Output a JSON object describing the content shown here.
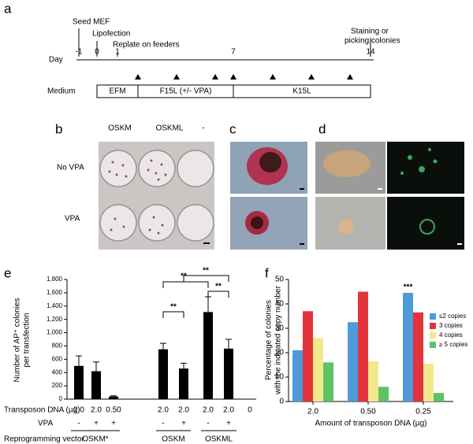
{
  "panel_labels": [
    "a",
    "b",
    "c",
    "d",
    "e",
    "f"
  ],
  "timeline": {
    "day_label": "Day",
    "days": [
      "-1",
      "0",
      "1",
      "7",
      "14"
    ],
    "events": [
      "Seed MEF",
      "Lipofection",
      "Replate on feeders",
      "Staining or",
      "picking colonies"
    ],
    "medium_label": "Medium",
    "media": [
      "EFM",
      "F15L (+/- VPA)",
      "K15L"
    ]
  },
  "plates": {
    "columns": [
      "OSKM",
      "OSKML",
      "-"
    ],
    "rows": [
      "No VPA",
      "VPA"
    ]
  },
  "chart_data": [
    {
      "type": "bar",
      "ylabel": [
        "Number of AP⁺ colonies",
        "per transfection"
      ],
      "values": [
        500,
        420,
        40,
        750,
        460,
        1310,
        760,
        0
      ],
      "errors": [
        150,
        140,
        10,
        90,
        80,
        230,
        140,
        0
      ],
      "color": "#000000",
      "ylim": [
        0,
        1800
      ],
      "yticks": [
        0,
        200,
        400,
        600,
        800,
        {
          "value": 1000,
          "label": "1,000"
        },
        {
          "value": 1200,
          "label": "1,200"
        },
        {
          "value": 1400,
          "label": "1,400"
        },
        {
          "value": 1600,
          "label": "1,600"
        },
        {
          "value": 1800,
          "label": "1,800"
        }
      ],
      "annotations": [
        "**",
        "**",
        "**",
        "**"
      ],
      "table": {
        "rows": [
          {
            "label": "Transposon DNA (µg)",
            "cells": [
              "2.0",
              "2.0",
              "0.50",
              "2.0",
              "2.0",
              "2.0",
              "2.0",
              "0"
            ]
          },
          {
            "label": "VPA",
            "cells": [
              "-",
              "+",
              "+",
              "-",
              "+",
              "-",
              "+",
              null
            ]
          }
        ],
        "group_label": "Reprogramming vector",
        "groups": [
          "OSKM*",
          "OSKM",
          "OSKML"
        ]
      }
    },
    {
      "type": "grouped-bar",
      "ylabel": [
        "Percentage of colonies",
        "with the indicated copy number"
      ],
      "xlabel": "Amount of transposon DNA (µg)",
      "categories": [
        "2.0",
        "0.50",
        "0.25"
      ],
      "series": [
        {
          "name": "≤2 copies",
          "color": "#4f9ad9",
          "values": [
            21,
            32.5,
            44.5
          ]
        },
        {
          "name": "3 copies",
          "color": "#e3343b",
          "values": [
            37,
            45,
            36.5
          ]
        },
        {
          "name": "4 copies",
          "color": "#f4e88c",
          "values": [
            26,
            16.5,
            15.5
          ]
        },
        {
          "name": "≥ 5 copies",
          "color": "#5cc463",
          "values": [
            16,
            6,
            3.5
          ]
        }
      ],
      "ylim": [
        0,
        50
      ],
      "yticks": [
        0,
        10,
        20,
        30,
        40,
        50
      ],
      "annotations": [
        "***"
      ]
    }
  ]
}
